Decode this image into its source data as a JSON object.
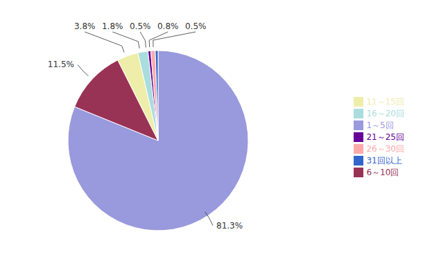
{
  "chart_data": {
    "type": "pie",
    "categories": [
      "1～5回",
      "6～10回",
      "11～15回",
      "16～20回",
      "21～25回",
      "26～30回",
      "31回以上"
    ],
    "values": [
      81.3,
      11.5,
      3.8,
      1.8,
      0.5,
      0.8,
      0.5
    ],
    "value_labels": [
      "81.3%",
      "11.5%",
      "3.8%",
      "1.8%",
      "0.5%",
      "0.8%",
      "0.5%"
    ],
    "colors": [
      "#9999dd",
      "#993355",
      "#eeeeaa",
      "#aadddd",
      "#660099",
      "#ffaaaa",
      "#3366cc"
    ],
    "data_labels": true,
    "legend": "right"
  }
}
